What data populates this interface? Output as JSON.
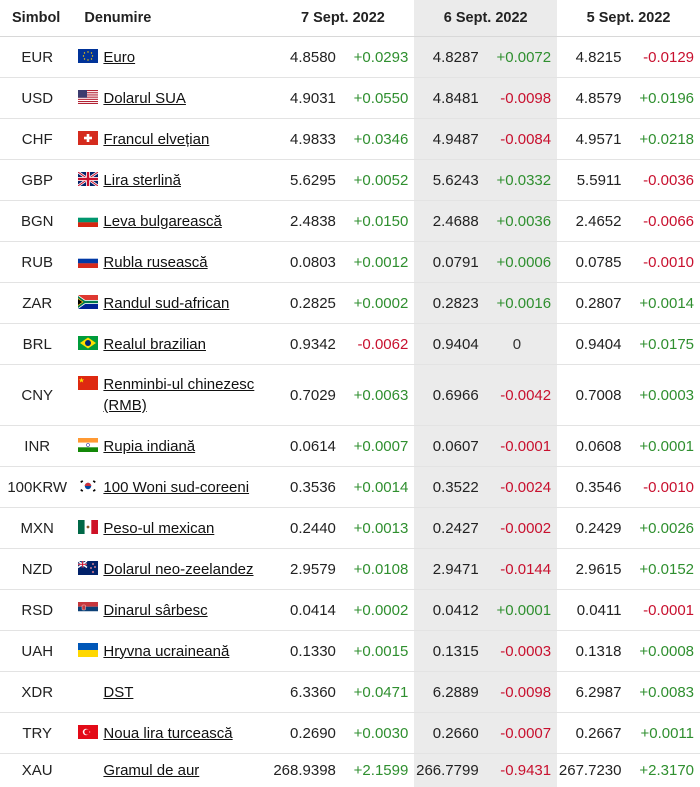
{
  "headers": {
    "symbol": "Simbol",
    "name": "Denumire",
    "d1": "7 Sept. 2022",
    "d2": "6 Sept. 2022",
    "d3": "5 Sept. 2022"
  },
  "rows": [
    {
      "symbol": "EUR",
      "flag": "eu-flag-icon",
      "name": "Euro",
      "v1": "4.8580",
      "c1": "+0.0293",
      "v2": "4.8287",
      "c2": "+0.0072",
      "v3": "4.8215",
      "c3": "-0.0129"
    },
    {
      "symbol": "USD",
      "flag": "us-flag-icon",
      "name": "Dolarul SUA",
      "v1": "4.9031",
      "c1": "+0.0550",
      "v2": "4.8481",
      "c2": "-0.0098",
      "v3": "4.8579",
      "c3": "+0.0196"
    },
    {
      "symbol": "CHF",
      "flag": "ch-flag-icon",
      "name": "Francul elvețian",
      "v1": "4.9833",
      "c1": "+0.0346",
      "v2": "4.9487",
      "c2": "-0.0084",
      "v3": "4.9571",
      "c3": "+0.0218"
    },
    {
      "symbol": "GBP",
      "flag": "gb-flag-icon",
      "name": "Lira sterlină",
      "v1": "5.6295",
      "c1": "+0.0052",
      "v2": "5.6243",
      "c2": "+0.0332",
      "v3": "5.5911",
      "c3": "-0.0036"
    },
    {
      "symbol": "BGN",
      "flag": "bg-flag-icon",
      "name": "Leva bulgarească",
      "v1": "2.4838",
      "c1": "+0.0150",
      "v2": "2.4688",
      "c2": "+0.0036",
      "v3": "2.4652",
      "c3": "-0.0066"
    },
    {
      "symbol": "RUB",
      "flag": "ru-flag-icon",
      "name": "Rubla rusească",
      "v1": "0.0803",
      "c1": "+0.0012",
      "v2": "0.0791",
      "c2": "+0.0006",
      "v3": "0.0785",
      "c3": "-0.0010"
    },
    {
      "symbol": "ZAR",
      "flag": "za-flag-icon",
      "name": "Randul sud-african",
      "v1": "0.2825",
      "c1": "+0.0002",
      "v2": "0.2823",
      "c2": "+0.0016",
      "v3": "0.2807",
      "c3": "+0.0014"
    },
    {
      "symbol": "BRL",
      "flag": "br-flag-icon",
      "name": "Realul brazilian",
      "v1": "0.9342",
      "c1": "-0.0062",
      "v2": "0.9404",
      "c2": "0",
      "v3": "0.9404",
      "c3": "+0.0175"
    },
    {
      "symbol": "CNY",
      "flag": "cn-flag-icon",
      "name": "Renminbi-ul chinezesc (RMB)",
      "v1": "0.7029",
      "c1": "+0.0063",
      "v2": "0.6966",
      "c2": "-0.0042",
      "v3": "0.7008",
      "c3": "+0.0003"
    },
    {
      "symbol": "INR",
      "flag": "in-flag-icon",
      "name": "Rupia indiană",
      "v1": "0.0614",
      "c1": "+0.0007",
      "v2": "0.0607",
      "c2": "-0.0001",
      "v3": "0.0608",
      "c3": "+0.0001"
    },
    {
      "symbol": "100KRW",
      "flag": "kr-flag-icon",
      "name": "100 Woni sud-coreeni",
      "v1": "0.3536",
      "c1": "+0.0014",
      "v2": "0.3522",
      "c2": "-0.0024",
      "v3": "0.3546",
      "c3": "-0.0010"
    },
    {
      "symbol": "MXN",
      "flag": "mx-flag-icon",
      "name": "Peso-ul mexican",
      "v1": "0.2440",
      "c1": "+0.0013",
      "v2": "0.2427",
      "c2": "-0.0002",
      "v3": "0.2429",
      "c3": "+0.0026"
    },
    {
      "symbol": "NZD",
      "flag": "nz-flag-icon",
      "name": "Dolarul neo-zeelandez",
      "v1": "2.9579",
      "c1": "+0.0108",
      "v2": "2.9471",
      "c2": "-0.0144",
      "v3": "2.9615",
      "c3": "+0.0152"
    },
    {
      "symbol": "RSD",
      "flag": "rs-flag-icon",
      "name": "Dinarul sârbesc",
      "v1": "0.0414",
      "c1": "+0.0002",
      "v2": "0.0412",
      "c2": "+0.0001",
      "v3": "0.0411",
      "c3": "-0.0001"
    },
    {
      "symbol": "UAH",
      "flag": "ua-flag-icon",
      "name": "Hryvna ucraineană",
      "v1": "0.1330",
      "c1": "+0.0015",
      "v2": "0.1315",
      "c2": "-0.0003",
      "v3": "0.1318",
      "c3": "+0.0008"
    },
    {
      "symbol": "XDR",
      "flag": "",
      "name": "DST",
      "v1": "6.3360",
      "c1": "+0.0471",
      "v2": "6.2889",
      "c2": "-0.0098",
      "v3": "6.2987",
      "c3": "+0.0083"
    },
    {
      "symbol": "TRY",
      "flag": "tr-flag-icon",
      "name": "Noua lira turcească",
      "v1": "0.2690",
      "c1": "+0.0030",
      "v2": "0.2660",
      "c2": "-0.0007",
      "v3": "0.2667",
      "c3": "+0.0011"
    },
    {
      "symbol": "XAU",
      "flag": "",
      "name": "Gramul de aur",
      "v1": "268.9398",
      "c1": "+2.1599",
      "v2": "266.7799",
      "c2": "-0.9431",
      "v3": "267.7230",
      "c3": "+2.3170"
    }
  ],
  "colors": {
    "positive": "#2f8f2f",
    "negative": "#c8102e",
    "shade": "#ebebeb"
  }
}
